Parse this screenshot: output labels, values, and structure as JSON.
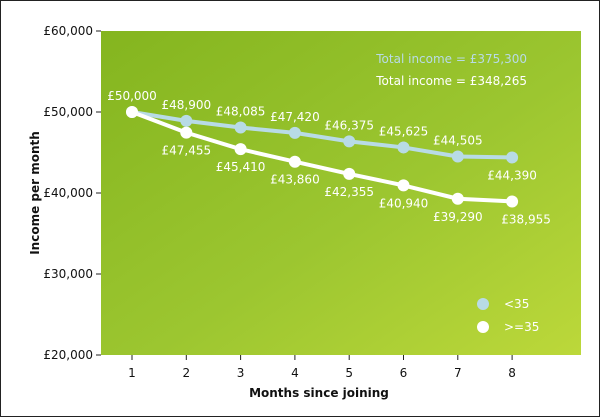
{
  "chart_data": {
    "type": "line",
    "title": "",
    "xlabel": "Months since joining",
    "ylabel": "Income per month",
    "categories": [
      "1",
      "2",
      "3",
      "4",
      "5",
      "6",
      "7",
      "8"
    ],
    "ylim": [
      20000,
      60000
    ],
    "yticks": [
      {
        "value": 20000,
        "label": "£20,000"
      },
      {
        "value": 30000,
        "label": "£30,000"
      },
      {
        "value": 40000,
        "label": "£40,000"
      },
      {
        "value": 50000,
        "label": "£50,000"
      },
      {
        "value": 60000,
        "label": "£60,000"
      }
    ],
    "grid": false,
    "legend_position": "bottom-right",
    "series": [
      {
        "name": "<35",
        "color": "#b8dbe6",
        "values": [
          50000,
          48900,
          48085,
          47420,
          46375,
          45625,
          44505,
          44390
        ],
        "labels": [
          "£50,000",
          "£48,900",
          "£48,085",
          "£47,420",
          "£46,375",
          "£45,625",
          "£44,505",
          "£44,390"
        ],
        "label_side": [
          "above",
          "above",
          "above",
          "above",
          "above",
          "above",
          "above",
          "below"
        ]
      },
      {
        "name": ">=35",
        "color": "#ffffff",
        "values": [
          50000,
          47455,
          45410,
          43860,
          42355,
          40940,
          39290,
          38955
        ],
        "labels": [
          "",
          "£47,455",
          "£45,410",
          "£43,860",
          "£42,355",
          "£40,940",
          "£39,290",
          "£38,955"
        ],
        "label_side": [
          "below",
          "below",
          "below",
          "below",
          "below",
          "below",
          "below",
          "right"
        ]
      }
    ],
    "annotations": [
      {
        "text": "Total income = £375,300",
        "color": "#b8dbe6"
      },
      {
        "text": "Total income = £348,265",
        "color": "#ffffff"
      }
    ]
  }
}
